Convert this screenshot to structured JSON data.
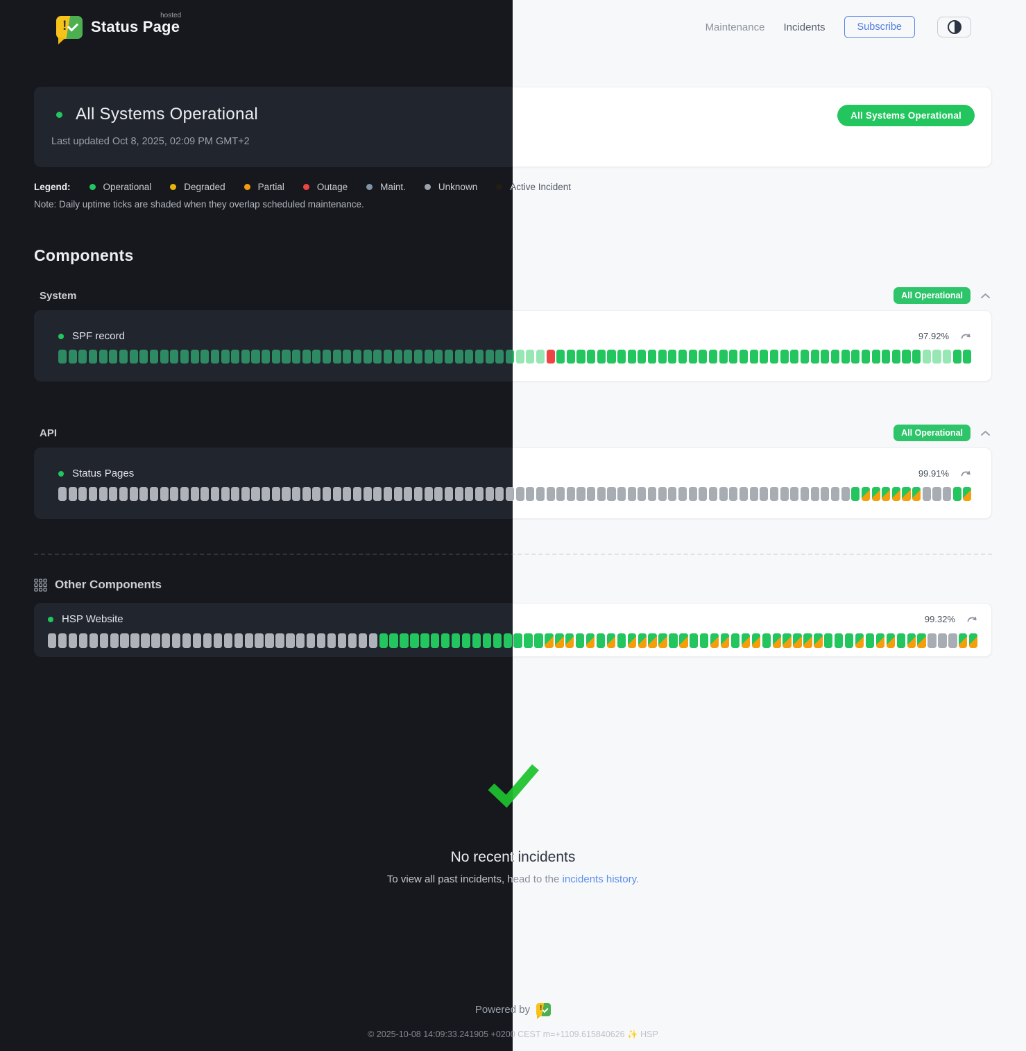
{
  "header": {
    "logo": {
      "title": "Status Page",
      "superscript": "hosted"
    },
    "nav": [
      {
        "label": "Maintenance"
      },
      {
        "label": "Incidents"
      }
    ],
    "subscribe_label": "Subscribe"
  },
  "banner": {
    "title": "All Systems Operational",
    "updated": "Last updated Oct 8, 2025, 02:09 PM GMT+2",
    "badge": "All Systems Operational"
  },
  "legend": {
    "label": "Legend:",
    "items": [
      {
        "label": "Operational",
        "color": "#22c55e"
      },
      {
        "label": "Degraded",
        "color": "#eab308"
      },
      {
        "label": "Partial",
        "color": "#f59e0b"
      },
      {
        "label": "Outage",
        "color": "#ef4444"
      },
      {
        "label": "Maint.",
        "color": "#7e94a6"
      },
      {
        "label": "Unknown",
        "color": "#9ca3ad"
      },
      {
        "label": "Active Incident",
        "color": "#231d15"
      }
    ],
    "note": "Note: Daily uptime ticks are shaded when they overlap scheduled maintenance."
  },
  "components": {
    "heading": "Components",
    "groups": [
      {
        "name": "System",
        "badge": "All Operational",
        "components": [
          {
            "name": "SPF record",
            "uptime": "97.92%",
            "ticks": "OOOOOOOOOOOOOOOOOOOOOOOOOOOOOOOOOOOOOOOOOOOOOMMMXOOOOOOOOOOOOOOOOOOOOOOOOOOOOOOOOOOOOMMMOO"
          }
        ]
      },
      {
        "name": "API",
        "badge": "All Operational",
        "components": [
          {
            "name": "Status Pages",
            "uptime": "99.91%",
            "ticks": "UUUUUUUUUUUUUUUUUUUUUUUUUUUUUUUUUUUUUUUUUUUUUUUUUUUUUUUUUUUUUUUUUUUUUUUUUUUUUUODDDDDDUUUOD"
          }
        ]
      }
    ],
    "other": {
      "heading": "Other Components",
      "components": [
        {
          "name": "HSP Website",
          "uptime": "99.32%",
          "ticks": "UUUUUUUUUUUUUUUUUUUUUUUUUUUUUUUUOOOOOOOOOOOOOOOODDDODODODDDDODOODDODDODDDDDOOODODDODDUUUDD"
        }
      ]
    }
  },
  "incidents": {
    "title": "No recent incidents",
    "subtext_prefix": "To view all past incidents, head to the ",
    "link_label": "incidents history",
    "subtext_suffix": "."
  },
  "footer": {
    "powered_by": "Powered by",
    "copyright": "© 2025-10-08 14:09:33.241905 +0200 CEST m=+1109.615840626 ✨ HSP"
  },
  "colors": {
    "accent_green": "#22c55e",
    "outage_red": "#ef4444",
    "partial_orange": "#f59e0b",
    "link_blue": "#5b8def"
  }
}
